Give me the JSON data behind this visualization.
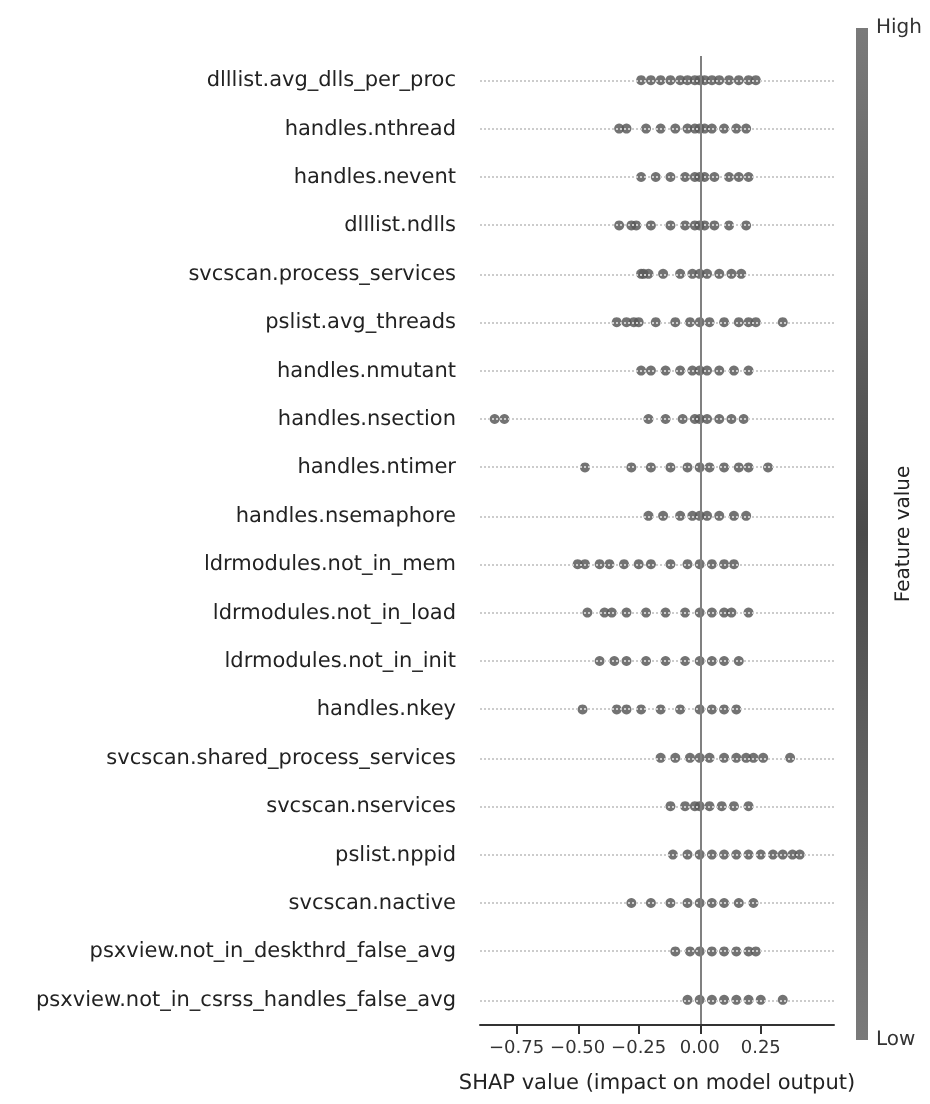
{
  "chart_data": {
    "type": "scatter",
    "orientation": "horizontal",
    "xlabel": "SHAP value (impact on model output)",
    "clabel": "Feature value",
    "clim": [
      0,
      1
    ],
    "cticks": [
      {
        "value": 1,
        "label": "High"
      },
      {
        "value": 0,
        "label": "Low"
      }
    ],
    "categories": [
      "dlllist.avg_dlls_per_proc",
      "handles.nthread",
      "handles.nevent",
      "dlllist.ndlls",
      "svcscan.process_services",
      "pslist.avg_threads",
      "handles.nmutant",
      "handles.nsection",
      "handles.ntimer",
      "handles.nsemaphore",
      "ldrmodules.not_in_mem",
      "ldrmodules.not_in_load",
      "ldrmodules.not_in_init",
      "handles.nkey",
      "svcscan.shared_process_services",
      "svcscan.nservices",
      "pslist.nppid",
      "svcscan.nactive",
      "psxview.not_in_deskthrd_false_avg",
      "psxview.not_in_csrss_handles_false_avg"
    ],
    "xlim": [
      -0.9,
      0.55
    ],
    "xticks": [
      {
        "value": -0.75,
        "label": "−0.75"
      },
      {
        "value": -0.5,
        "label": "−0.50"
      },
      {
        "value": -0.25,
        "label": "−0.25"
      },
      {
        "value": 0,
        "label": "0.00"
      },
      {
        "value": 0.25,
        "label": "0.25"
      }
    ],
    "grid": "y",
    "marker": "circle",
    "ref_lines": [
      {
        "axis": "x",
        "value": 0,
        "color": "#808080"
      }
    ],
    "series": [
      {
        "color": "#5a5a5a",
        "x": [
          "dlllist.avg_dlls_per_proc",
          "dlllist.avg_dlls_per_proc",
          "dlllist.avg_dlls_per_proc",
          "dlllist.avg_dlls_per_proc",
          "dlllist.avg_dlls_per_proc",
          "dlllist.avg_dlls_per_proc",
          "dlllist.avg_dlls_per_proc",
          "dlllist.avg_dlls_per_proc",
          "dlllist.avg_dlls_per_proc",
          "dlllist.avg_dlls_per_proc",
          "dlllist.avg_dlls_per_proc",
          "dlllist.avg_dlls_per_proc",
          "dlllist.avg_dlls_per_proc",
          "dlllist.avg_dlls_per_proc",
          "dlllist.avg_dlls_per_proc",
          "handles.nthread",
          "handles.nthread",
          "handles.nthread",
          "handles.nthread",
          "handles.nthread",
          "handles.nthread",
          "handles.nthread",
          "handles.nthread",
          "handles.nthread",
          "handles.nthread",
          "handles.nthread",
          "handles.nthread",
          "handles.nthread",
          "handles.nevent",
          "handles.nevent",
          "handles.nevent",
          "handles.nevent",
          "handles.nevent",
          "handles.nevent",
          "handles.nevent",
          "handles.nevent",
          "handles.nevent",
          "handles.nevent",
          "handles.nevent",
          "dlllist.ndlls",
          "dlllist.ndlls",
          "dlllist.ndlls",
          "dlllist.ndlls",
          "dlllist.ndlls",
          "dlllist.ndlls",
          "dlllist.ndlls",
          "dlllist.ndlls",
          "dlllist.ndlls",
          "dlllist.ndlls",
          "dlllist.ndlls",
          "dlllist.ndlls",
          "svcscan.process_services",
          "svcscan.process_services",
          "svcscan.process_services",
          "svcscan.process_services",
          "svcscan.process_services",
          "svcscan.process_services",
          "svcscan.process_services",
          "svcscan.process_services",
          "svcscan.process_services",
          "svcscan.process_services",
          "svcscan.process_services",
          "pslist.avg_threads",
          "pslist.avg_threads",
          "pslist.avg_threads",
          "pslist.avg_threads",
          "pslist.avg_threads",
          "pslist.avg_threads",
          "pslist.avg_threads",
          "pslist.avg_threads",
          "pslist.avg_threads",
          "pslist.avg_threads",
          "pslist.avg_threads",
          "pslist.avg_threads",
          "pslist.avg_threads",
          "pslist.avg_threads",
          "handles.nmutant",
          "handles.nmutant",
          "handles.nmutant",
          "handles.nmutant",
          "handles.nmutant",
          "handles.nmutant",
          "handles.nmutant",
          "handles.nmutant",
          "handles.nmutant",
          "handles.nmutant",
          "handles.nsection",
          "handles.nsection",
          "handles.nsection",
          "handles.nsection",
          "handles.nsection",
          "handles.nsection",
          "handles.nsection",
          "handles.nsection",
          "handles.nsection",
          "handles.nsection",
          "handles.nsection",
          "handles.ntimer",
          "handles.ntimer",
          "handles.ntimer",
          "handles.ntimer",
          "handles.ntimer",
          "handles.ntimer",
          "handles.ntimer",
          "handles.ntimer",
          "handles.ntimer",
          "handles.ntimer",
          "handles.ntimer",
          "handles.nsemaphore",
          "handles.nsemaphore",
          "handles.nsemaphore",
          "handles.nsemaphore",
          "handles.nsemaphore",
          "handles.nsemaphore",
          "handles.nsemaphore",
          "handles.nsemaphore",
          "handles.nsemaphore",
          "ldrmodules.not_in_mem",
          "ldrmodules.not_in_mem",
          "ldrmodules.not_in_mem",
          "ldrmodules.not_in_mem",
          "ldrmodules.not_in_mem",
          "ldrmodules.not_in_mem",
          "ldrmodules.not_in_mem",
          "ldrmodules.not_in_mem",
          "ldrmodules.not_in_mem",
          "ldrmodules.not_in_mem",
          "ldrmodules.not_in_mem",
          "ldrmodules.not_in_mem",
          "ldrmodules.not_in_mem",
          "ldrmodules.not_in_load",
          "ldrmodules.not_in_load",
          "ldrmodules.not_in_load",
          "ldrmodules.not_in_load",
          "ldrmodules.not_in_load",
          "ldrmodules.not_in_load",
          "ldrmodules.not_in_load",
          "ldrmodules.not_in_load",
          "ldrmodules.not_in_load",
          "ldrmodules.not_in_load",
          "ldrmodules.not_in_load",
          "ldrmodules.not_in_load",
          "ldrmodules.not_in_init",
          "ldrmodules.not_in_init",
          "ldrmodules.not_in_init",
          "ldrmodules.not_in_init",
          "ldrmodules.not_in_init",
          "ldrmodules.not_in_init",
          "ldrmodules.not_in_init",
          "ldrmodules.not_in_init",
          "ldrmodules.not_in_init",
          "ldrmodules.not_in_init",
          "handles.nkey",
          "handles.nkey",
          "handles.nkey",
          "handles.nkey",
          "handles.nkey",
          "handles.nkey",
          "handles.nkey",
          "handles.nkey",
          "handles.nkey",
          "handles.nkey",
          "svcscan.shared_process_services",
          "svcscan.shared_process_services",
          "svcscan.shared_process_services",
          "svcscan.shared_process_services",
          "svcscan.shared_process_services",
          "svcscan.shared_process_services",
          "svcscan.shared_process_services",
          "svcscan.shared_process_services",
          "svcscan.shared_process_services",
          "svcscan.shared_process_services",
          "svcscan.shared_process_services",
          "svcscan.nservices",
          "svcscan.nservices",
          "svcscan.nservices",
          "svcscan.nservices",
          "svcscan.nservices",
          "svcscan.nservices",
          "svcscan.nservices",
          "svcscan.nservices",
          "pslist.nppid",
          "pslist.nppid",
          "pslist.nppid",
          "pslist.nppid",
          "pslist.nppid",
          "pslist.nppid",
          "pslist.nppid",
          "pslist.nppid",
          "pslist.nppid",
          "pslist.nppid",
          "pslist.nppid",
          "pslist.nppid",
          "svcscan.nactive",
          "svcscan.nactive",
          "svcscan.nactive",
          "svcscan.nactive",
          "svcscan.nactive",
          "svcscan.nactive",
          "svcscan.nactive",
          "svcscan.nactive",
          "svcscan.nactive",
          "psxview.not_in_deskthrd_false_avg",
          "psxview.not_in_deskthrd_false_avg",
          "psxview.not_in_deskthrd_false_avg",
          "psxview.not_in_deskthrd_false_avg",
          "psxview.not_in_deskthrd_false_avg",
          "psxview.not_in_deskthrd_false_avg",
          "psxview.not_in_deskthrd_false_avg",
          "psxview.not_in_deskthrd_false_avg",
          "psxview.not_in_csrss_handles_false_avg",
          "psxview.not_in_csrss_handles_false_avg",
          "psxview.not_in_csrss_handles_false_avg",
          "psxview.not_in_csrss_handles_false_avg",
          "psxview.not_in_csrss_handles_false_avg",
          "psxview.not_in_csrss_handles_false_avg",
          "psxview.not_in_csrss_handles_false_avg",
          "psxview.not_in_csrss_handles_false_avg"
        ],
        "values": [
          -0.24,
          -0.2,
          -0.16,
          -0.12,
          -0.08,
          -0.05,
          -0.02,
          0,
          0.02,
          0.05,
          0.08,
          0.12,
          0.16,
          0.2,
          0.23,
          -0.33,
          -0.3,
          -0.22,
          -0.16,
          -0.1,
          -0.05,
          -0.02,
          0,
          0.02,
          0.05,
          0.1,
          0.15,
          0.19,
          -0.24,
          -0.18,
          -0.12,
          -0.06,
          -0.02,
          0,
          0.02,
          0.06,
          0.12,
          0.16,
          0.2,
          -0.33,
          -0.28,
          -0.26,
          -0.2,
          -0.12,
          -0.06,
          -0.02,
          0,
          0.02,
          0.06,
          0.12,
          0.19,
          -0.24,
          -0.23,
          -0.21,
          -0.15,
          -0.08,
          -0.03,
          0,
          0.03,
          0.08,
          0.13,
          0.17,
          -0.34,
          -0.3,
          -0.27,
          -0.25,
          -0.18,
          -0.1,
          -0.04,
          0,
          0.04,
          0.1,
          0.16,
          0.2,
          0.23,
          0.34,
          -0.24,
          -0.2,
          -0.14,
          -0.08,
          -0.03,
          0,
          0.03,
          0.08,
          0.14,
          0.2,
          -0.84,
          -0.8,
          -0.21,
          -0.14,
          -0.07,
          -0.02,
          0,
          0.03,
          0.08,
          0.13,
          0.18,
          -0.47,
          -0.28,
          -0.2,
          -0.12,
          -0.05,
          0,
          0.04,
          0.1,
          0.16,
          0.2,
          0.28,
          -0.21,
          -0.15,
          -0.08,
          -0.03,
          0,
          0.03,
          0.08,
          0.14,
          0.19,
          -0.5,
          -0.47,
          -0.41,
          -0.37,
          -0.31,
          -0.25,
          -0.2,
          -0.12,
          -0.05,
          0,
          0.05,
          0.1,
          0.14,
          -0.46,
          -0.39,
          -0.36,
          -0.3,
          -0.22,
          -0.14,
          -0.06,
          0,
          0.05,
          0.1,
          0.13,
          0.2,
          -0.41,
          -0.35,
          -0.3,
          -0.22,
          -0.14,
          -0.06,
          0,
          0.05,
          0.1,
          0.16,
          -0.48,
          -0.34,
          -0.3,
          -0.24,
          -0.16,
          -0.08,
          0,
          0.05,
          0.1,
          0.15,
          -0.16,
          -0.1,
          -0.04,
          0,
          0.04,
          0.1,
          0.15,
          0.19,
          0.22,
          0.26,
          0.37,
          -0.12,
          -0.06,
          -0.02,
          0,
          0.04,
          0.09,
          0.14,
          0.2,
          -0.11,
          -0.05,
          0,
          0.05,
          0.1,
          0.15,
          0.2,
          0.25,
          0.3,
          0.34,
          0.38,
          0.41,
          -0.28,
          -0.2,
          -0.12,
          -0.05,
          0,
          0.05,
          0.1,
          0.16,
          0.22,
          -0.1,
          -0.04,
          0,
          0.05,
          0.1,
          0.15,
          0.2,
          0.23,
          -0.05,
          0,
          0.05,
          0.1,
          0.15,
          0.2,
          0.25,
          0.34
        ]
      }
    ]
  }
}
